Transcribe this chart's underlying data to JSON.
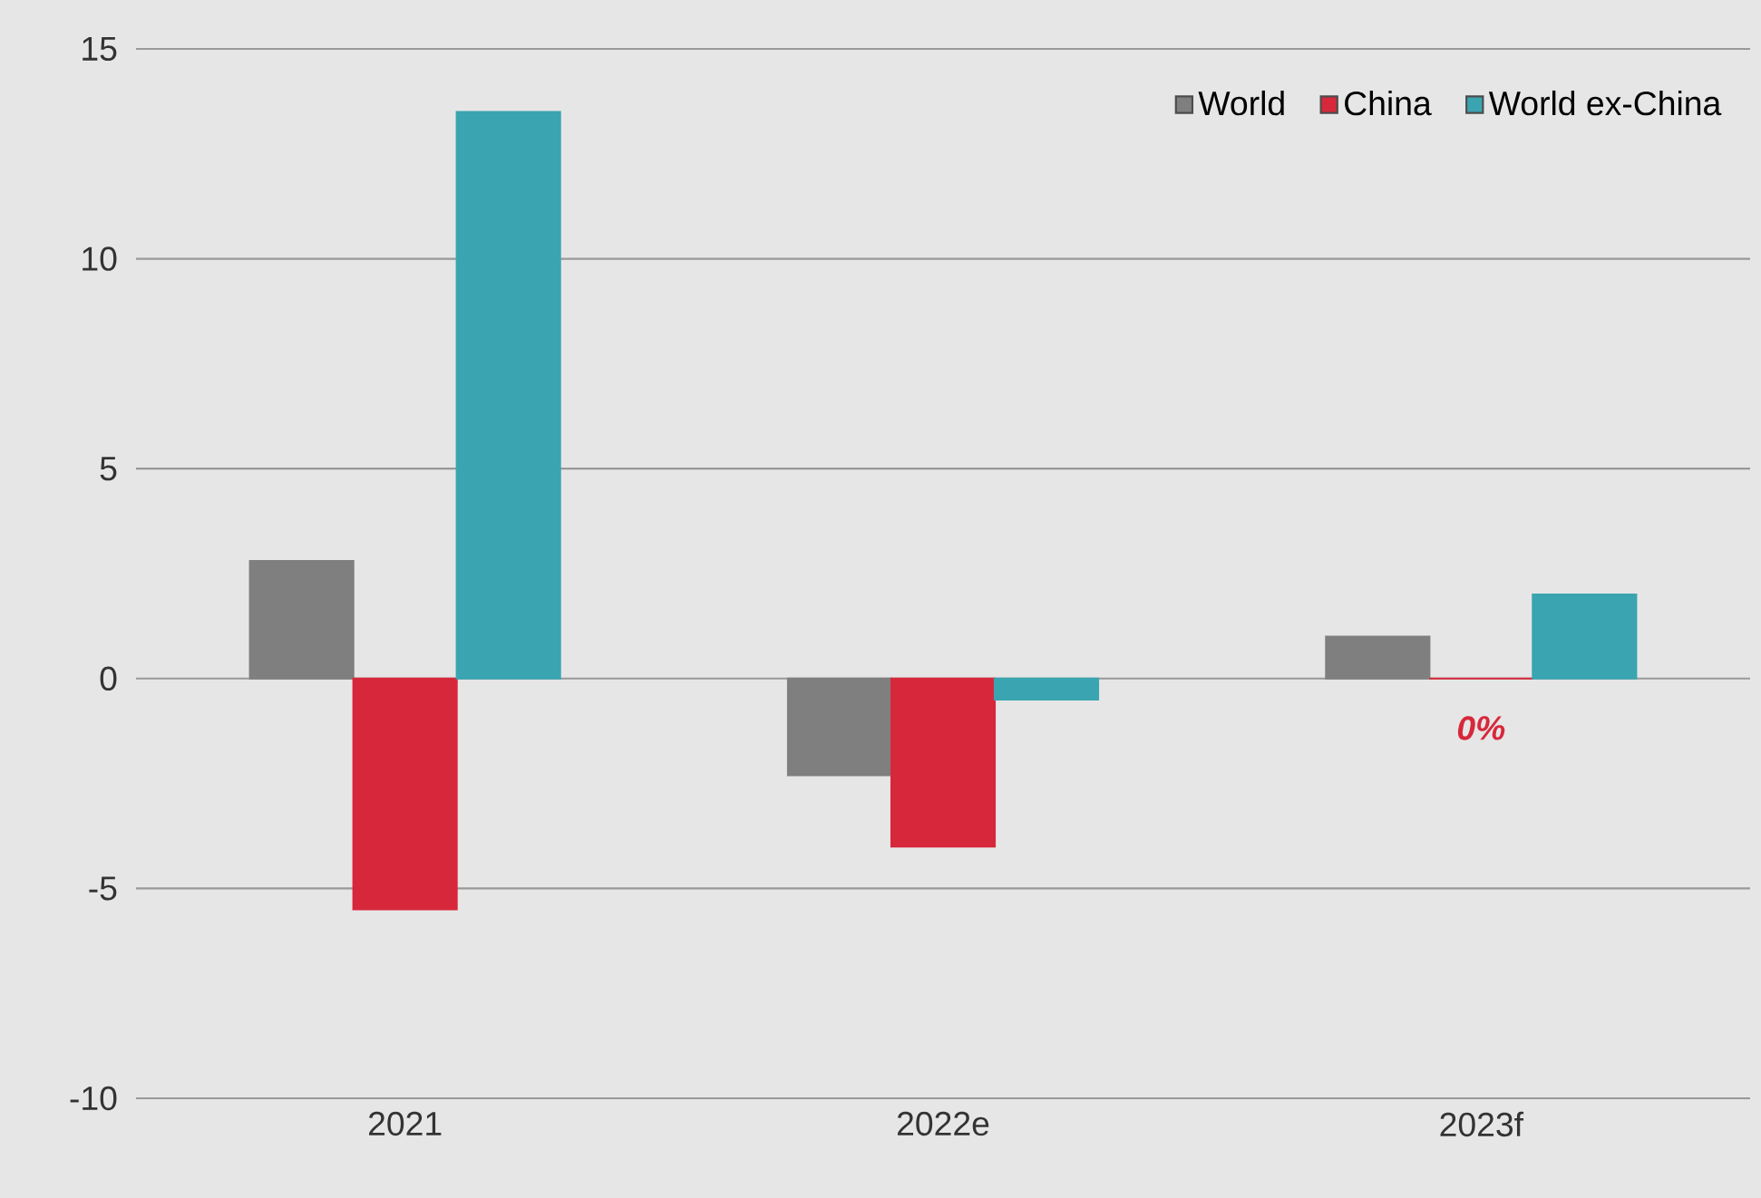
{
  "chart_data": {
    "type": "bar",
    "categories": [
      "2021",
      "2022e",
      "2023f"
    ],
    "series": [
      {
        "name": "World",
        "color": "#7f7f7f",
        "values": [
          2.8,
          -2.3,
          1.0
        ]
      },
      {
        "name": "China",
        "color": "#d7283b",
        "values": [
          -5.5,
          -4.0,
          0
        ]
      },
      {
        "name": "World ex-China",
        "color": "#3aa5b0",
        "values": [
          13.5,
          -0.5,
          2.0
        ]
      }
    ],
    "ylim": [
      -10,
      15
    ],
    "yticks": [
      -10,
      -5,
      0,
      5,
      10,
      15
    ],
    "grid": "y",
    "legend": "top right",
    "annotations": [
      {
        "text": "0%",
        "x": "2023f",
        "y": 0
      }
    ]
  }
}
